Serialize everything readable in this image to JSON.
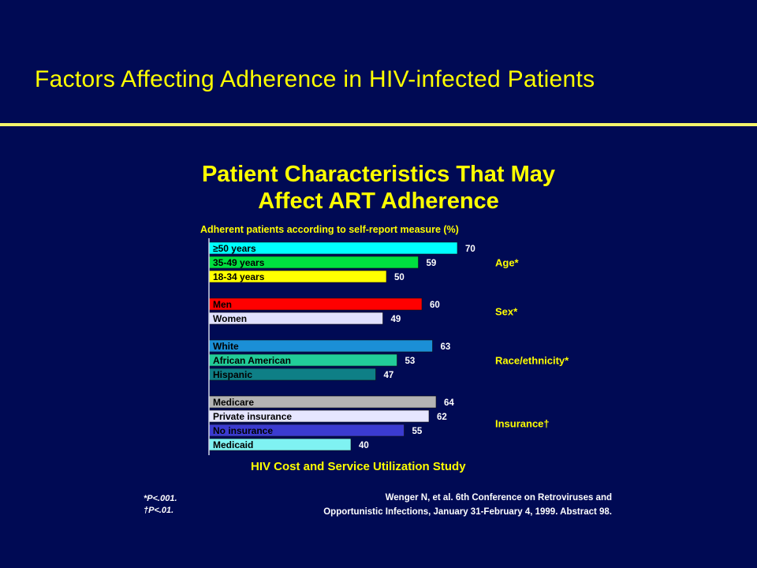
{
  "slide": {
    "title": "Factors Affecting Adherence in HIV-infected Patients"
  },
  "chart_data": {
    "type": "bar",
    "orientation": "horizontal",
    "title_line1": "Patient Characteristics That May",
    "title_line2": "Affect ART Adherence",
    "subtitle": "Adherent patients according to self-report measure (%)",
    "xlim": [
      0,
      100
    ],
    "grid": false,
    "groups": [
      {
        "name": "Age*",
        "bars": [
          {
            "label": "≥50 years",
            "value": 70,
            "color": "#00ffff"
          },
          {
            "label": "35-49 years",
            "value": 59,
            "color": "#00e040"
          },
          {
            "label": "18-34 years",
            "value": 50,
            "color": "#ffff00"
          }
        ]
      },
      {
        "name": "Sex*",
        "bars": [
          {
            "label": "Men",
            "value": 60,
            "color": "#ff0000"
          },
          {
            "label": "Women",
            "value": 49,
            "color": "#e0e0ff"
          }
        ]
      },
      {
        "name": "Race/ethnicity*",
        "bars": [
          {
            "label": "White",
            "value": 63,
            "color": "#1b8fd6"
          },
          {
            "label": "African American",
            "value": 53,
            "color": "#22cc99"
          },
          {
            "label": "Hispanic",
            "value": 47,
            "color": "#0e7f86"
          }
        ]
      },
      {
        "name": "Insurance†",
        "bars": [
          {
            "label": "Medicare",
            "value": 64,
            "color": "#b4b4b4"
          },
          {
            "label": "Private insurance",
            "value": 62,
            "color": "#e6e6ff"
          },
          {
            "label": "No insurance",
            "value": 55,
            "color": "#3b3bd0"
          },
          {
            "label": "Medicaid",
            "value": 40,
            "color": "#7ff2f2"
          }
        ]
      }
    ]
  },
  "footer": {
    "study": "HIV Cost and Service Utilization Study",
    "note1": "*P<.001.",
    "note2": "†P<.01.",
    "ref_line1": "Wenger N, et al. 6th Conference on Retroviruses and",
    "ref_line2": "Opportunistic Infections, January 31-February 4, 1999. Abstract 98."
  },
  "colors": {
    "background": "#000a54",
    "title": "#ffff00",
    "rule": "#f4f46c"
  }
}
